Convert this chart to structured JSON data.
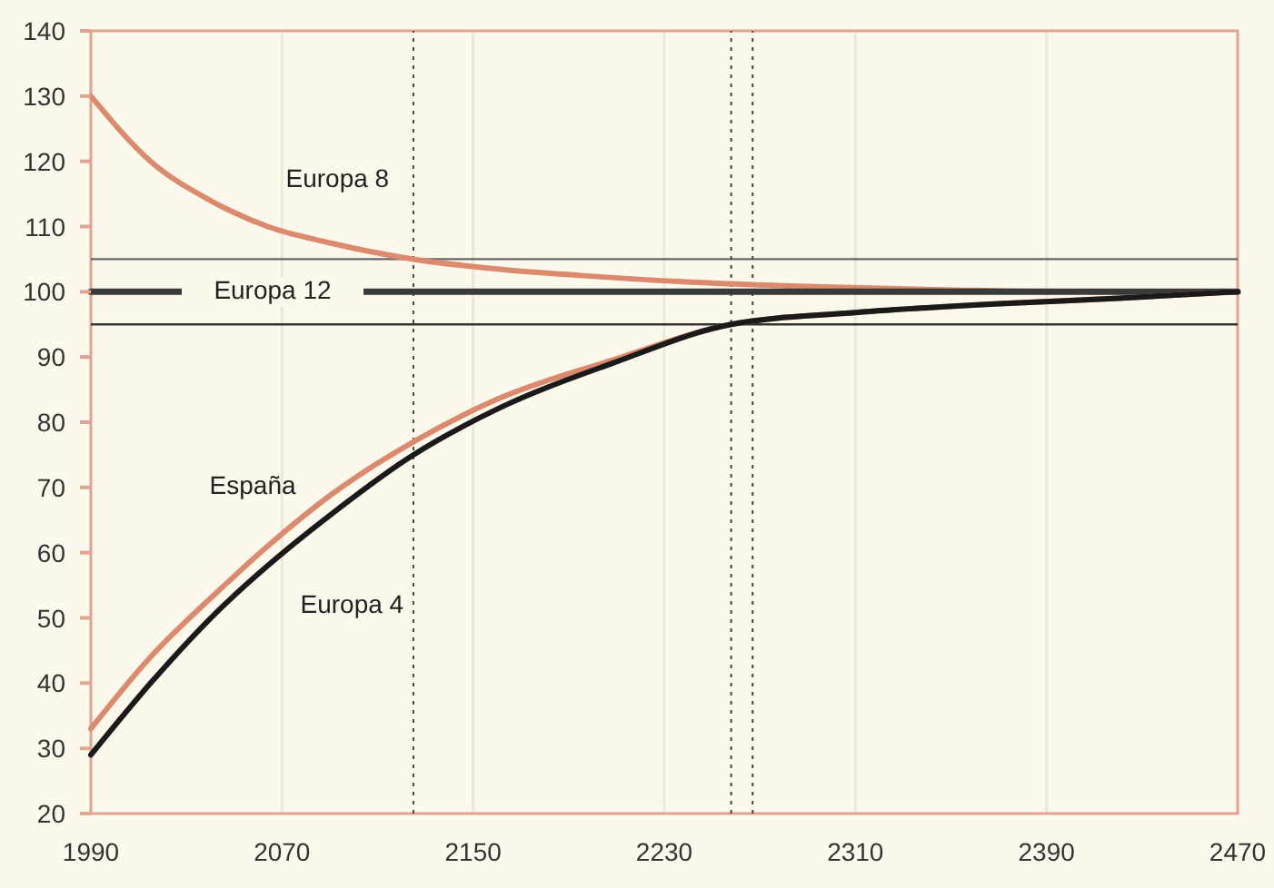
{
  "chart_data": {
    "type": "line",
    "xlim": [
      1990,
      2470
    ],
    "xticks": [
      1990,
      2070,
      2150,
      2230,
      2310,
      2390,
      2470
    ],
    "ylim": [
      20,
      140
    ],
    "yticks": [
      20,
      30,
      40,
      50,
      60,
      70,
      80,
      90,
      100,
      110,
      120,
      130,
      140
    ],
    "grid": "x",
    "line_style": "solid",
    "marker": "none",
    "series": [
      {
        "name": "Europa 8",
        "color": "#dc8a6e",
        "x": [
          1990,
          2015,
          2040,
          2064,
          2090,
          2125,
          2160,
          2195,
          2240,
          2290,
          2347,
          2400,
          2470
        ],
        "values": [
          130,
          120,
          114,
          110,
          107.5,
          105,
          103.5,
          102.5,
          101.5,
          100.8,
          100.3,
          100,
          100
        ]
      },
      {
        "name": "Europa 12",
        "color": "#3a3a3a",
        "x": [
          1990,
          2470
        ],
        "values": [
          100,
          100
        ]
      },
      {
        "name": "España",
        "color": "#dc8a6e",
        "x": [
          1990,
          2015,
          2043,
          2064,
          2091,
          2125,
          2160,
          2208,
          2258,
          2310,
          2372,
          2420,
          2470
        ],
        "values": [
          33,
          44,
          54,
          61,
          69,
          77,
          83.5,
          89.5,
          95,
          96.8,
          98.2,
          99,
          100
        ]
      },
      {
        "name": "Europa 4",
        "color": "#1a1a1a",
        "x": [
          1990,
          2015,
          2043,
          2064,
          2091,
          2125,
          2160,
          2208,
          2258,
          2310,
          2372,
          2420,
          2470
        ],
        "values": [
          29,
          40,
          51,
          58,
          66,
          75,
          82,
          89,
          95,
          96.8,
          98.2,
          99,
          100
        ]
      }
    ],
    "ref_lines": [
      {
        "axis": "y",
        "value": 105,
        "color": "#666666",
        "line_style": "solid"
      },
      {
        "axis": "y",
        "value": 95,
        "color": "#333333",
        "line_style": "solid"
      },
      {
        "axis": "x",
        "value": 2125,
        "color": "#444444",
        "line_style": "dotted"
      },
      {
        "axis": "x",
        "value": 2258,
        "color": "#444444",
        "line_style": "dotted"
      },
      {
        "axis": "x",
        "value": 2267,
        "color": "#444444",
        "line_style": "dotted"
      }
    ]
  }
}
